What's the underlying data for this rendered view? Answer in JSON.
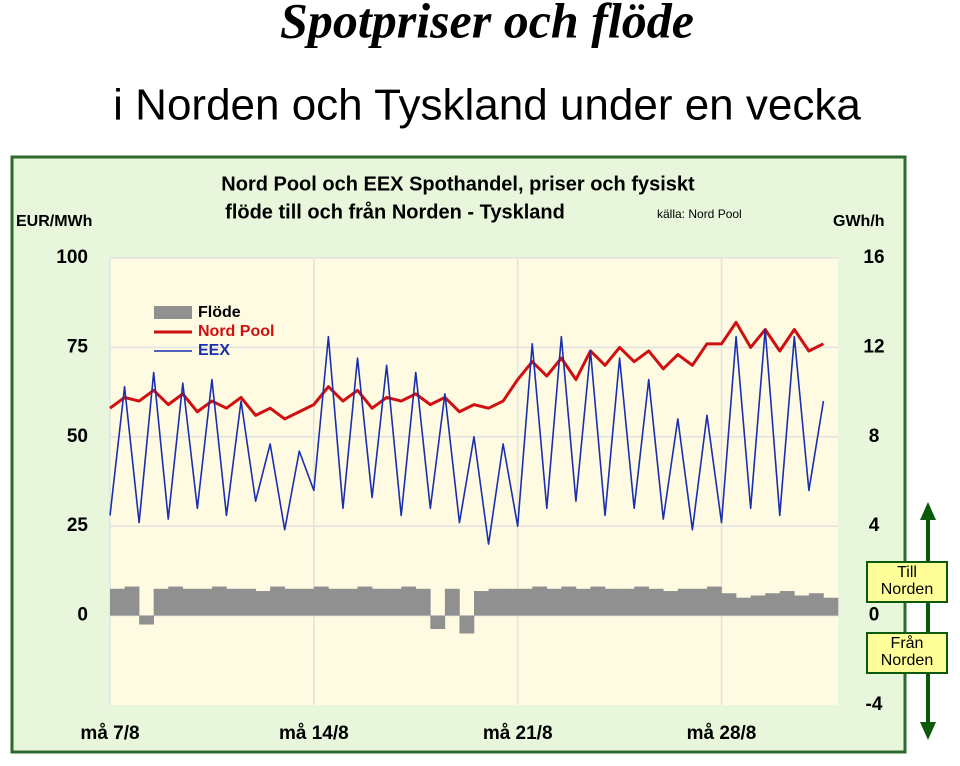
{
  "slide": {
    "title": "Spotpriser och flöde",
    "subtitle": "i Norden och Tyskland under en vecka"
  },
  "chart_data": {
    "type": "line",
    "title": [
      "Nord Pool och EEX Spothandel, priser och fysiskt",
      "flöde till och från Norden - Tyskland"
    ],
    "source": "källa: Nord Pool",
    "y_label": "EUR/MWh",
    "y2_label": "GWh/h",
    "annotations": [
      [
        "Till",
        "Norden"
      ],
      [
        "Från",
        "Norden"
      ]
    ],
    "x": [
      0,
      0.5,
      1,
      1.5,
      2,
      2.5,
      3,
      3.5,
      4,
      4.5,
      5,
      5.5,
      6,
      6.5,
      7,
      7.5,
      8,
      8.5,
      9,
      9.5,
      10,
      10.5,
      11,
      11.5,
      12,
      12.5,
      13,
      13.5,
      14,
      14.5,
      15,
      15.5,
      16,
      16.5,
      17,
      17.5,
      18,
      18.5,
      19,
      19.5,
      20,
      20.5,
      21,
      21.5,
      22,
      22.5,
      23,
      23.5,
      24,
      24.5
    ],
    "xlim": [
      0,
      25
    ],
    "xticks": [
      {
        "value": 0,
        "label": "må 7/8"
      },
      {
        "value": 7,
        "label": "må 14/8"
      },
      {
        "value": 14,
        "label": "må 21/8"
      },
      {
        "value": 21,
        "label": "må 28/8"
      }
    ],
    "ylim": [
      -25,
      100
    ],
    "yticks": [
      0,
      25,
      50,
      75,
      100
    ],
    "y2lim": [
      -4,
      16
    ],
    "y2ticks": [
      -4,
      0,
      4,
      8,
      12,
      16
    ],
    "grid": true,
    "legend": "upper left",
    "series": [
      {
        "name": "Flöde",
        "color": "#909090",
        "axis": "y2",
        "kind": "bar",
        "values": [
          1.2,
          1.3,
          -0.4,
          1.2,
          1.3,
          1.2,
          1.2,
          1.3,
          1.2,
          1.2,
          1.1,
          1.3,
          1.2,
          1.2,
          1.3,
          1.2,
          1.2,
          1.3,
          1.2,
          1.2,
          1.3,
          1.2,
          -0.6,
          1.2,
          -0.8,
          1.1,
          1.2,
          1.2,
          1.2,
          1.3,
          1.2,
          1.3,
          1.2,
          1.3,
          1.2,
          1.2,
          1.3,
          1.2,
          1.1,
          1.2,
          1.2,
          1.3,
          1.0,
          0.8,
          0.9,
          1.0,
          1.1,
          0.9,
          1.0,
          0.8
        ]
      },
      {
        "name": "Nord Pool",
        "color": "#d01010",
        "values": [
          58,
          61,
          60,
          63,
          59,
          62,
          57,
          60,
          58,
          61,
          56,
          58,
          55,
          57,
          59,
          64,
          60,
          63,
          58,
          61,
          60,
          62,
          59,
          61,
          57,
          59,
          58,
          60,
          66,
          71,
          67,
          72,
          66,
          74,
          70,
          75,
          71,
          74,
          69,
          73,
          70,
          76,
          76,
          82,
          75,
          80,
          74,
          80,
          74,
          76
        ]
      },
      {
        "name": "EEX",
        "color": "#1a2fb0",
        "values": [
          28,
          64,
          26,
          68,
          27,
          65,
          30,
          66,
          28,
          60,
          32,
          48,
          24,
          46,
          35,
          78,
          30,
          72,
          33,
          70,
          28,
          68,
          30,
          62,
          26,
          50,
          20,
          48,
          25,
          76,
          30,
          78,
          32,
          74,
          28,
          72,
          30,
          66,
          27,
          55,
          24,
          56,
          26,
          78,
          30,
          80,
          28,
          78,
          35,
          60
        ]
      }
    ]
  }
}
